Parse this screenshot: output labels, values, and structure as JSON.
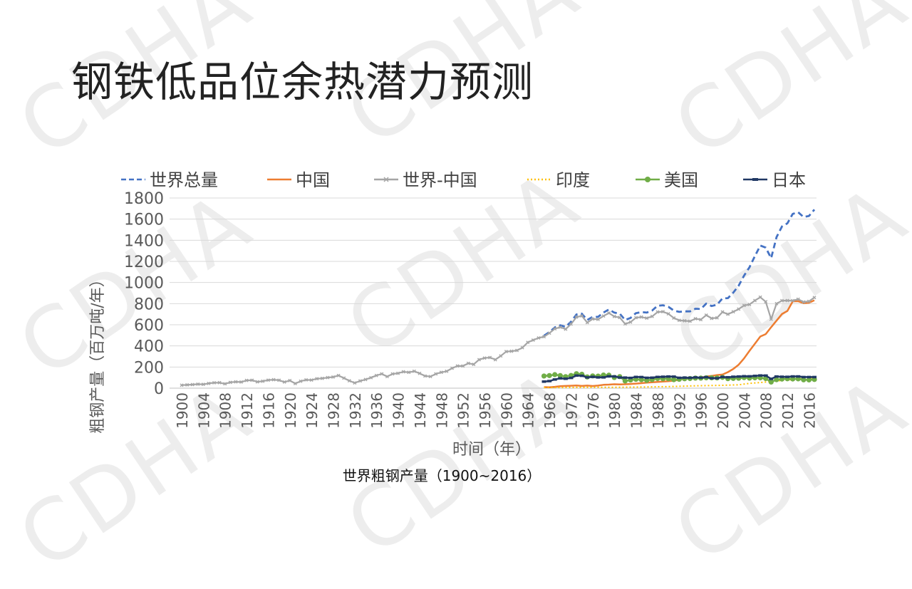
{
  "slide": {
    "title": "钢铁低品位余热潜力预测",
    "caption": "世界粗钢产量（1900~2016）",
    "watermark": "CDHA"
  },
  "chart_data": {
    "type": "line",
    "title": "",
    "xlabel": "时间（年）",
    "ylabel": "粗钢产量（百万吨/年）",
    "ylim": [
      0,
      1800
    ],
    "yticks": [
      0,
      200,
      400,
      600,
      800,
      1000,
      1200,
      1400,
      1600,
      1800
    ],
    "xrange": [
      1900,
      2017
    ],
    "xticks": [
      1900,
      1904,
      1908,
      1912,
      1916,
      1920,
      1924,
      1928,
      1932,
      1936,
      1940,
      1944,
      1948,
      1952,
      1956,
      1960,
      1964,
      1968,
      1972,
      1976,
      1980,
      1984,
      1988,
      1992,
      1996,
      2000,
      2004,
      2008,
      2012,
      2016
    ],
    "grid": "horizontal",
    "legend_position": "top",
    "series": [
      {
        "name": "世界总量",
        "color": "#4472C4",
        "style": "dashed",
        "x": [
          1967,
          1968,
          1969,
          1970,
          1971,
          1972,
          1973,
          1974,
          1975,
          1976,
          1977,
          1978,
          1979,
          1980,
          1981,
          1982,
          1983,
          1984,
          1985,
          1986,
          1987,
          1988,
          1989,
          1990,
          1991,
          1992,
          1993,
          1994,
          1995,
          1996,
          1997,
          1998,
          1999,
          2000,
          2001,
          2002,
          2003,
          2004,
          2005,
          2006,
          2007,
          2008,
          2009,
          2010,
          2011,
          2012,
          2013,
          2014,
          2015,
          2016,
          2017
        ],
        "y": [
          497,
          530,
          575,
          595,
          580,
          630,
          698,
          705,
          645,
          675,
          675,
          715,
          745,
          715,
          705,
          645,
          665,
          710,
          720,
          715,
          735,
          780,
          785,
          770,
          735,
          722,
          727,
          727,
          752,
          750,
          800,
          777,
          790,
          850,
          852,
          905,
          970,
          1065,
          1145,
          1250,
          1350,
          1330,
          1230,
          1430,
          1530,
          1560,
          1650,
          1665,
          1620,
          1630,
          1690
        ]
      },
      {
        "name": "中国",
        "color": "#ED7D31",
        "style": "solid",
        "x": [
          1967,
          1968,
          1969,
          1970,
          1971,
          1972,
          1973,
          1974,
          1975,
          1976,
          1977,
          1978,
          1979,
          1980,
          1981,
          1982,
          1983,
          1984,
          1985,
          1986,
          1987,
          1988,
          1989,
          1990,
          1991,
          1992,
          1993,
          1994,
          1995,
          1996,
          1997,
          1998,
          1999,
          2000,
          2001,
          2002,
          2003,
          2004,
          2005,
          2006,
          2007,
          2008,
          2009,
          2010,
          2011,
          2012,
          2013,
          2014,
          2015,
          2016,
          2017
        ],
        "y": [
          10,
          9,
          13,
          18,
          21,
          23,
          25,
          21,
          24,
          20,
          24,
          32,
          34,
          37,
          36,
          37,
          40,
          43,
          47,
          52,
          56,
          59,
          62,
          66,
          71,
          80,
          89,
          93,
          95,
          101,
          109,
          116,
          124,
          129,
          152,
          182,
          222,
          282,
          353,
          421,
          489,
          512,
          577,
          639,
          702,
          731,
          822,
          823,
          804,
          808,
          832
        ]
      },
      {
        "name": "世界-中国",
        "color": "#A5A5A5",
        "style": "marker-x",
        "x": [
          1900,
          1901,
          1902,
          1903,
          1904,
          1905,
          1906,
          1907,
          1908,
          1909,
          1910,
          1911,
          1912,
          1913,
          1914,
          1915,
          1916,
          1917,
          1918,
          1919,
          1920,
          1921,
          1922,
          1923,
          1924,
          1925,
          1926,
          1927,
          1928,
          1929,
          1930,
          1931,
          1932,
          1933,
          1934,
          1935,
          1936,
          1937,
          1938,
          1939,
          1940,
          1941,
          1942,
          1943,
          1944,
          1945,
          1946,
          1947,
          1948,
          1949,
          1950,
          1951,
          1952,
          1953,
          1954,
          1955,
          1956,
          1957,
          1958,
          1959,
          1960,
          1961,
          1962,
          1963,
          1964,
          1965,
          1966,
          1967,
          1968,
          1969,
          1970,
          1971,
          1972,
          1973,
          1974,
          1975,
          1976,
          1977,
          1978,
          1979,
          1980,
          1981,
          1982,
          1983,
          1984,
          1985,
          1986,
          1987,
          1988,
          1989,
          1990,
          1991,
          1992,
          1993,
          1994,
          1995,
          1996,
          1997,
          1998,
          1999,
          2000,
          2001,
          2002,
          2003,
          2004,
          2005,
          2006,
          2007,
          2008,
          2009,
          2010,
          2011,
          2012,
          2013,
          2014,
          2015,
          2016,
          2017
        ],
        "y": [
          28,
          31,
          34,
          38,
          36,
          45,
          51,
          52,
          41,
          55,
          60,
          58,
          73,
          75,
          60,
          66,
          76,
          80,
          75,
          58,
          72,
          44,
          66,
          78,
          77,
          89,
          93,
          100,
          105,
          120,
          95,
          70,
          50,
          68,
          82,
          99,
          120,
          135,
          110,
          135,
          141,
          155,
          150,
          160,
          140,
          115,
          110,
          135,
          150,
          160,
          189,
          210,
          210,
          235,
          225,
          270,
          285,
          290,
          270,
          305,
          346,
          350,
          357,
          383,
          433,
          455,
          475,
          487,
          521,
          562,
          577,
          559,
          607,
          673,
          684,
          621,
          655,
          651,
          683,
          711,
          678,
          669,
          608,
          625,
          667,
          673,
          663,
          679,
          721,
          724,
          704,
          664,
          642,
          638,
          634,
          657,
          649,
          691,
          661,
          666,
          721,
          700,
          723,
          748,
          783,
          792,
          829,
          861,
          818,
          653,
          800,
          828,
          829,
          828,
          842,
          816,
          822,
          858
        ]
      },
      {
        "name": "印度",
        "color": "#FFC000",
        "style": "dotted",
        "x": [
          1967,
          1970,
          1975,
          1980,
          1985,
          1990,
          1995,
          2000,
          2003,
          2005,
          2007,
          2008,
          2010,
          2012,
          2014,
          2016,
          2017
        ],
        "y": [
          6,
          6,
          8,
          9,
          11,
          15,
          22,
          27,
          32,
          45,
          53,
          58,
          69,
          77,
          87,
          95,
          101
        ]
      },
      {
        "name": "美国",
        "color": "#70AD47",
        "style": "marker-dot",
        "x": [
          1967,
          1968,
          1969,
          1970,
          1971,
          1972,
          1973,
          1974,
          1975,
          1976,
          1977,
          1978,
          1979,
          1980,
          1981,
          1982,
          1983,
          1984,
          1985,
          1986,
          1987,
          1988,
          1989,
          1990,
          1991,
          1992,
          1993,
          1994,
          1995,
          1996,
          1997,
          1998,
          1999,
          2000,
          2001,
          2002,
          2003,
          2004,
          2005,
          2006,
          2007,
          2008,
          2009,
          2010,
          2011,
          2012,
          2013,
          2014,
          2015,
          2016,
          2017
        ],
        "y": [
          115,
          119,
          128,
          119,
          109,
          120,
          137,
          132,
          106,
          116,
          114,
          124,
          123,
          101,
          109,
          68,
          77,
          84,
          80,
          74,
          81,
          91,
          89,
          90,
          80,
          84,
          89,
          91,
          95,
          95,
          98,
          98,
          97,
          102,
          90,
          92,
          94,
          100,
          95,
          98,
          98,
          91,
          58,
          80,
          86,
          89,
          87,
          88,
          79,
          78,
          82
        ]
      },
      {
        "name": "日本",
        "color": "#203864",
        "style": "marker-dash",
        "x": [
          1967,
          1968,
          1969,
          1970,
          1971,
          1972,
          1973,
          1974,
          1975,
          1976,
          1977,
          1978,
          1979,
          1980,
          1981,
          1982,
          1983,
          1984,
          1985,
          1986,
          1987,
          1988,
          1989,
          1990,
          1991,
          1992,
          1993,
          1994,
          1995,
          1996,
          1997,
          1998,
          1999,
          2000,
          2001,
          2002,
          2003,
          2004,
          2005,
          2006,
          2007,
          2008,
          2009,
          2010,
          2011,
          2012,
          2013,
          2014,
          2015,
          2016,
          2017
        ],
        "y": [
          62,
          67,
          82,
          93,
          89,
          97,
          119,
          117,
          102,
          107,
          102,
          102,
          112,
          111,
          101,
          100,
          97,
          106,
          105,
          98,
          99,
          106,
          108,
          110,
          109,
          98,
          100,
          98,
          102,
          99,
          104,
          94,
          94,
          106,
          103,
          108,
          110,
          113,
          112,
          116,
          120,
          119,
          88,
          110,
          108,
          107,
          111,
          111,
          105,
          105,
          105
        ]
      }
    ]
  }
}
